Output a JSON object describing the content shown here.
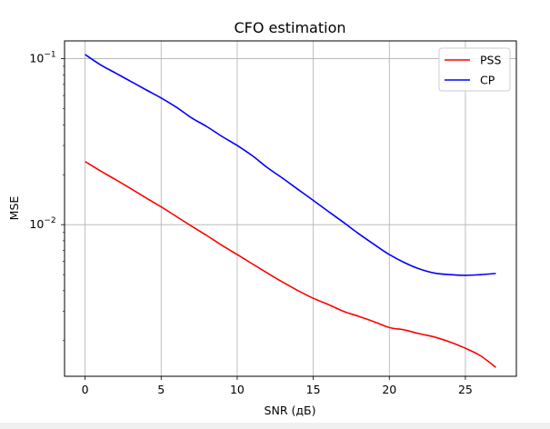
{
  "chart_data": {
    "type": "line",
    "title": "CFO estimation",
    "xlabel": "SNR (дБ)",
    "ylabel": "MSE",
    "yscale": "log",
    "xlim": [
      -1.35,
      28.35
    ],
    "ylim": [
      0.00122,
      0.128
    ],
    "xticks": [
      0,
      5,
      10,
      15,
      20,
      25
    ],
    "xtick_labels": [
      "0",
      "5",
      "10",
      "15",
      "20",
      "25"
    ],
    "yticks": [
      0.1,
      0.01
    ],
    "ytick_labels": [
      {
        "base": "10",
        "exp": "−1"
      },
      {
        "base": "10",
        "exp": "−2"
      }
    ],
    "grid": true,
    "legend_position": "top-right",
    "x": [
      0,
      1,
      2,
      3,
      4,
      5,
      6,
      7,
      8,
      9,
      10,
      11,
      12,
      13,
      14,
      15,
      16,
      17,
      18,
      19,
      20,
      21,
      22,
      23,
      24,
      25,
      26,
      27
    ],
    "series": [
      {
        "name": "PSS",
        "color": "#ff0000",
        "values": [
          0.024,
          0.0211,
          0.0187,
          0.0165,
          0.0145,
          0.0128,
          0.0112,
          0.0098,
          0.0086,
          0.0075,
          0.0066,
          0.0058,
          0.0051,
          0.0045,
          0.004,
          0.0036,
          0.0033,
          0.003,
          0.0028,
          0.0026,
          0.0024,
          0.00232,
          0.0022,
          0.0021,
          0.00196,
          0.0018,
          0.00162,
          0.00138
        ]
      },
      {
        "name": "CP",
        "color": "#0000ff",
        "values": [
          0.106,
          0.092,
          0.082,
          0.073,
          0.065,
          0.058,
          0.051,
          0.044,
          0.039,
          0.034,
          0.03,
          0.026,
          0.022,
          0.019,
          0.0163,
          0.014,
          0.012,
          0.0103,
          0.0088,
          0.0076,
          0.0066,
          0.0059,
          0.0054,
          0.0051,
          0.005,
          0.00495,
          0.005,
          0.00508
        ]
      }
    ]
  }
}
